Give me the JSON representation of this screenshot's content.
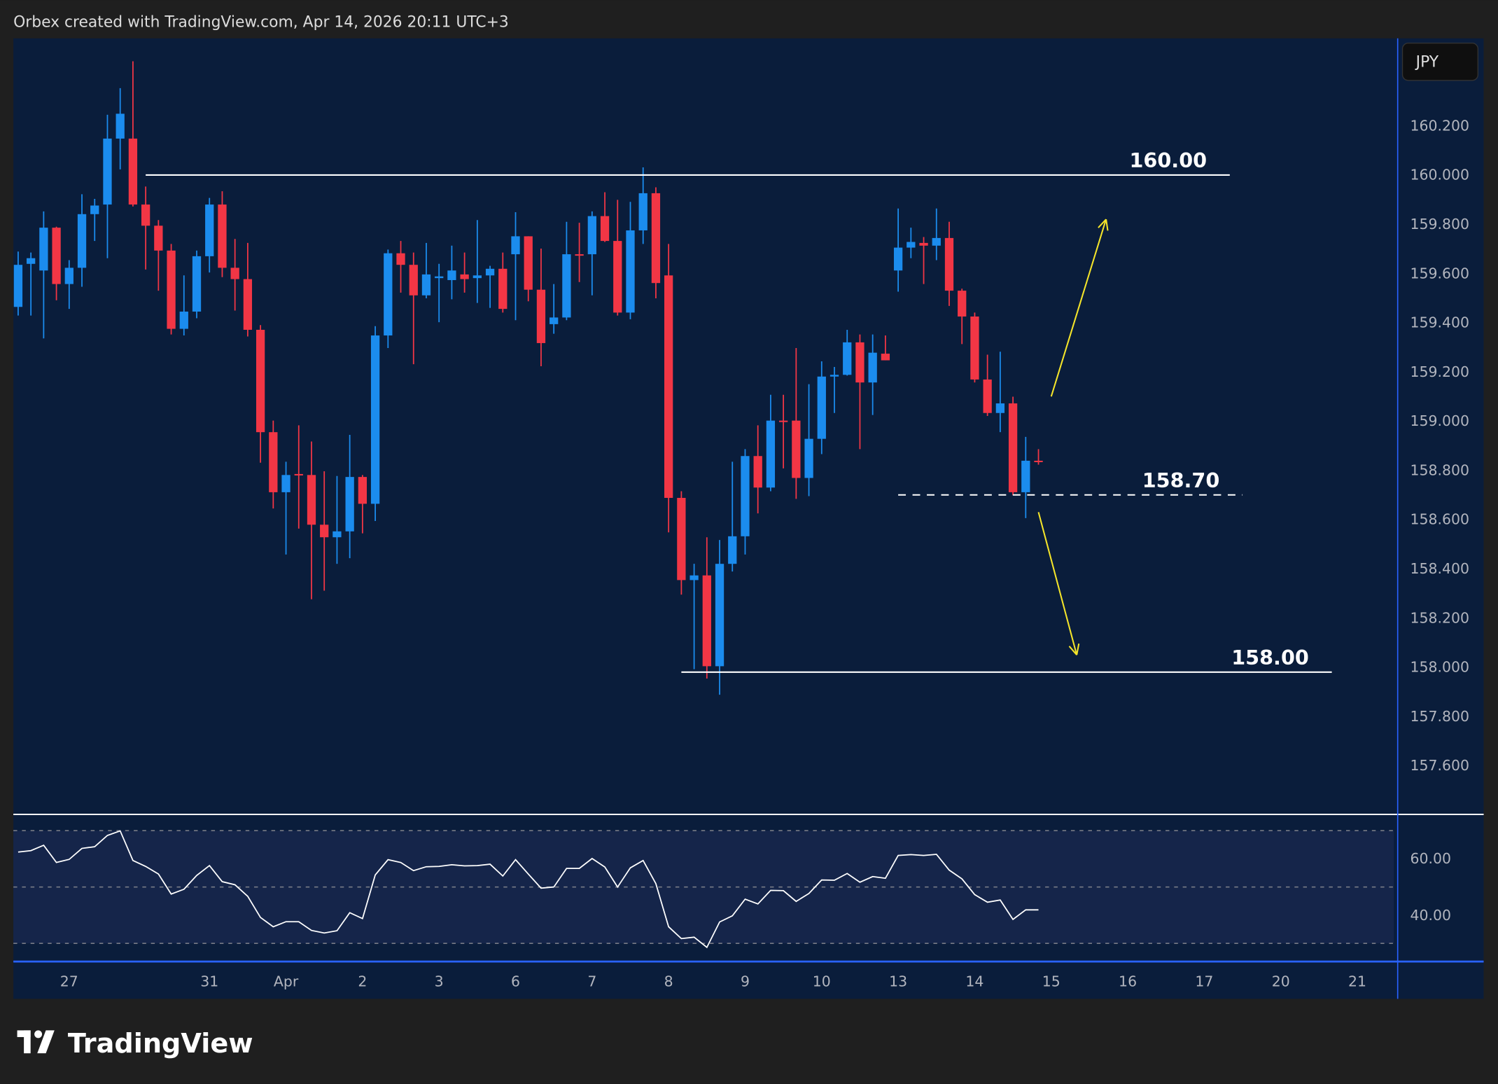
{
  "header": {
    "attribution": "Orbex created with TradingView.com, Apr 14, 2026 20:11 UTC+3"
  },
  "currency_button": "JPY",
  "footer": {
    "logo_text": "TradingView"
  },
  "colors": {
    "up": "#1b8cee",
    "down": "#f23645",
    "panel": "#0a1d3b",
    "rsi_band": "#15254a",
    "arrow": "#f5e52a"
  },
  "chart_data": [
    {
      "type": "candlestick",
      "symbol_quote": "JPY",
      "price_axis": {
        "ticks": [
          "160.200",
          "160.000",
          "159.800",
          "159.600",
          "159.400",
          "159.200",
          "159.000",
          "158.800",
          "158.600",
          "158.400",
          "158.200",
          "158.000",
          "157.800",
          "157.600"
        ]
      },
      "time_axis": {
        "labels": [
          {
            "text": "27",
            "bar": 4
          },
          {
            "text": "31",
            "bar": 15
          },
          {
            "text": "Apr",
            "bar": 21
          },
          {
            "text": "2",
            "bar": 27
          },
          {
            "text": "3",
            "bar": 33
          },
          {
            "text": "6",
            "bar": 39
          },
          {
            "text": "7",
            "bar": 45
          },
          {
            "text": "8",
            "bar": 51
          },
          {
            "text": "9",
            "bar": 57
          },
          {
            "text": "10",
            "bar": 63
          },
          {
            "text": "13",
            "bar": 69
          },
          {
            "text": "14",
            "bar": 75
          },
          {
            "text": "15",
            "bar": 81
          },
          {
            "text": "16",
            "bar": 87
          },
          {
            "text": "17",
            "bar": 93
          },
          {
            "text": "20",
            "bar": 99
          },
          {
            "text": "21",
            "bar": 105
          }
        ]
      },
      "levels": [
        {
          "label": "160.00",
          "price": 160.0,
          "style": "solid",
          "from_bar": 10,
          "to_bar": 95
        },
        {
          "label": "158.70",
          "price": 158.7,
          "style": "dashed",
          "from_bar": 69,
          "to_bar": 96
        },
        {
          "label": "158.00",
          "price": 157.98,
          "style": "solid",
          "from_bar": 52,
          "to_bar": 103
        }
      ],
      "arrows": [
        {
          "direction": "up",
          "from": {
            "bar": 81,
            "price": 159.1
          },
          "to": {
            "bar": 85.3,
            "price": 159.82
          }
        },
        {
          "direction": "down",
          "from": {
            "bar": 80,
            "price": 158.63
          },
          "to": {
            "bar": 83,
            "price": 158.05
          }
        }
      ],
      "ohlc": [
        [
          159.464,
          159.689,
          159.429,
          159.635
        ],
        [
          159.639,
          159.685,
          159.429,
          159.662
        ],
        [
          159.612,
          159.852,
          159.336,
          159.786
        ],
        [
          159.786,
          159.79,
          159.491,
          159.557
        ],
        [
          159.557,
          159.654,
          159.456,
          159.623
        ],
        [
          159.623,
          159.922,
          159.546,
          159.841
        ],
        [
          159.841,
          159.903,
          159.732,
          159.876
        ],
        [
          159.88,
          160.245,
          159.662,
          160.148
        ],
        [
          160.148,
          160.353,
          160.023,
          160.249
        ],
        [
          160.148,
          160.462,
          159.872,
          159.88
        ],
        [
          159.88,
          159.953,
          159.616,
          159.794
        ],
        [
          159.794,
          159.817,
          159.53,
          159.693
        ],
        [
          159.693,
          159.72,
          159.352,
          159.375
        ],
        [
          159.375,
          159.592,
          159.348,
          159.445
        ],
        [
          159.445,
          159.693,
          159.418,
          159.67
        ],
        [
          159.67,
          159.907,
          159.604,
          159.88
        ],
        [
          159.88,
          159.934,
          159.585,
          159.623
        ],
        [
          159.623,
          159.74,
          159.449,
          159.577
        ],
        [
          159.577,
          159.724,
          159.344,
          159.371
        ],
        [
          159.371,
          159.39,
          158.831,
          158.955
        ],
        [
          158.955,
          159.002,
          158.645,
          158.711
        ],
        [
          158.711,
          158.835,
          158.458,
          158.781
        ],
        [
          158.785,
          158.983,
          158.563,
          158.781
        ],
        [
          158.781,
          158.917,
          158.276,
          158.579
        ],
        [
          158.579,
          158.796,
          158.311,
          158.528
        ],
        [
          158.528,
          158.777,
          158.42,
          158.552
        ],
        [
          158.552,
          158.944,
          158.443,
          158.773
        ],
        [
          158.773,
          158.781,
          158.544,
          158.664
        ],
        [
          158.664,
          159.386,
          158.594,
          159.348
        ],
        [
          159.348,
          159.697,
          159.297,
          159.682
        ],
        [
          159.682,
          159.732,
          159.522,
          159.635
        ],
        [
          159.635,
          159.685,
          159.231,
          159.511
        ],
        [
          159.511,
          159.724,
          159.499,
          159.596
        ],
        [
          159.581,
          159.639,
          159.402,
          159.588
        ],
        [
          159.573,
          159.713,
          159.495,
          159.612
        ],
        [
          159.596,
          159.685,
          159.522,
          159.577
        ],
        [
          159.581,
          159.817,
          159.48,
          159.592
        ],
        [
          159.592,
          159.631,
          159.46,
          159.619
        ],
        [
          159.619,
          159.685,
          159.441,
          159.456
        ],
        [
          159.678,
          159.849,
          159.41,
          159.751
        ],
        [
          159.751,
          159.751,
          159.487,
          159.534
        ],
        [
          159.534,
          159.701,
          159.223,
          159.317
        ],
        [
          159.394,
          159.557,
          159.355,
          159.421
        ],
        [
          159.421,
          159.81,
          159.41,
          159.678
        ],
        [
          159.678,
          159.806,
          159.565,
          159.674
        ],
        [
          159.678,
          159.852,
          159.511,
          159.833
        ],
        [
          159.833,
          159.93,
          159.728,
          159.732
        ],
        [
          159.732,
          159.899,
          159.429,
          159.441
        ],
        [
          159.441,
          159.891,
          159.414,
          159.775
        ],
        [
          159.775,
          160.031,
          159.72,
          159.926
        ],
        [
          159.926,
          159.95,
          159.499,
          159.561
        ],
        [
          159.592,
          159.72,
          158.548,
          158.688
        ],
        [
          158.688,
          158.715,
          158.295,
          158.354
        ],
        [
          158.354,
          158.42,
          157.992,
          158.373
        ],
        [
          158.373,
          158.528,
          157.954,
          158.004
        ],
        [
          158.004,
          158.517,
          157.888,
          158.42
        ],
        [
          158.42,
          158.835,
          158.389,
          158.532
        ],
        [
          158.532,
          158.886,
          158.458,
          158.858
        ],
        [
          158.858,
          158.983,
          158.625,
          158.73
        ],
        [
          158.73,
          159.107,
          158.715,
          159.002
        ],
        [
          159.002,
          159.107,
          158.808,
          159.0
        ],
        [
          159.002,
          159.297,
          158.684,
          158.769
        ],
        [
          158.769,
          159.15,
          158.695,
          158.928
        ],
        [
          158.928,
          159.243,
          158.866,
          159.181
        ],
        [
          159.181,
          159.22,
          159.033,
          159.188
        ],
        [
          159.188,
          159.371,
          159.185,
          159.32
        ],
        [
          159.32,
          159.352,
          158.886,
          159.157
        ],
        [
          159.157,
          159.352,
          159.025,
          159.278
        ],
        [
          159.274,
          159.348,
          159.247,
          159.247
        ],
        [
          159.612,
          159.864,
          159.526,
          159.705
        ],
        [
          159.705,
          159.786,
          159.662,
          159.728
        ],
        [
          159.724,
          159.748,
          159.557,
          159.713
        ],
        [
          159.713,
          159.864,
          159.654,
          159.744
        ],
        [
          159.744,
          159.81,
          159.468,
          159.53
        ],
        [
          159.53,
          159.538,
          159.313,
          159.425
        ],
        [
          159.425,
          159.441,
          159.157,
          159.169
        ],
        [
          159.169,
          159.27,
          159.021,
          159.033
        ],
        [
          159.033,
          159.282,
          158.955,
          159.072
        ],
        [
          159.072,
          159.099,
          158.699,
          158.711
        ],
        [
          158.711,
          158.936,
          158.606,
          158.839
        ],
        [
          158.839,
          158.886,
          158.823,
          158.835
        ]
      ]
    },
    {
      "type": "line",
      "name": "RSI",
      "axis_ticks": [
        "60.00",
        "40.00"
      ],
      "bands": [
        70,
        50,
        30
      ],
      "ylim": [
        25,
        75
      ],
      "values": [
        62.4,
        62.9,
        64.8,
        58.7,
        59.8,
        63.7,
        64.3,
        68.3,
        69.9,
        59.4,
        57.3,
        54.6,
        47.5,
        49.2,
        54.1,
        57.6,
        51.9,
        50.8,
        46.7,
        39.2,
        35.9,
        37.7,
        37.7,
        34.6,
        33.7,
        34.5,
        40.9,
        38.8,
        54.3,
        59.7,
        58.7,
        55.8,
        57.2,
        57.3,
        57.9,
        57.5,
        57.6,
        58.1,
        53.9,
        59.7,
        54.6,
        49.6,
        50.0,
        56.6,
        56.6,
        60.1,
        57.1,
        50.0,
        56.8,
        59.4,
        51.2,
        35.9,
        31.7,
        32.2,
        28.6,
        37.6,
        39.8,
        45.7,
        44.0,
        48.8,
        48.7,
        44.9,
        47.7,
        52.5,
        52.4,
        54.8,
        51.7,
        53.7,
        53.1,
        61.2,
        61.5,
        61.2,
        61.6,
        56.0,
        52.9,
        47.3,
        44.6,
        45.4,
        38.5,
        41.9,
        41.9
      ]
    }
  ]
}
